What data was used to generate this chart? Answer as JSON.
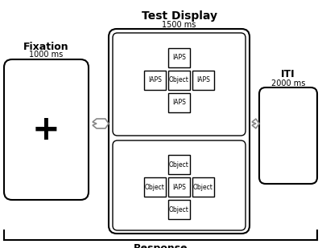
{
  "title": "Test Display",
  "title_ms": "1500 ms",
  "fixation_label": "Fixation",
  "fixation_ms": "1000 ms",
  "iti_label": "ITI",
  "iti_ms": "2000 ms",
  "response_label": "Response",
  "upper_labels": {
    "top": "IAPS",
    "left": "IAPS",
    "center": "Object",
    "right": "IAPS",
    "bottom": "IAPS"
  },
  "lower_labels": {
    "top": "Object",
    "left": "Object",
    "center": "IAPS",
    "right": "Object",
    "bottom": "Object"
  }
}
